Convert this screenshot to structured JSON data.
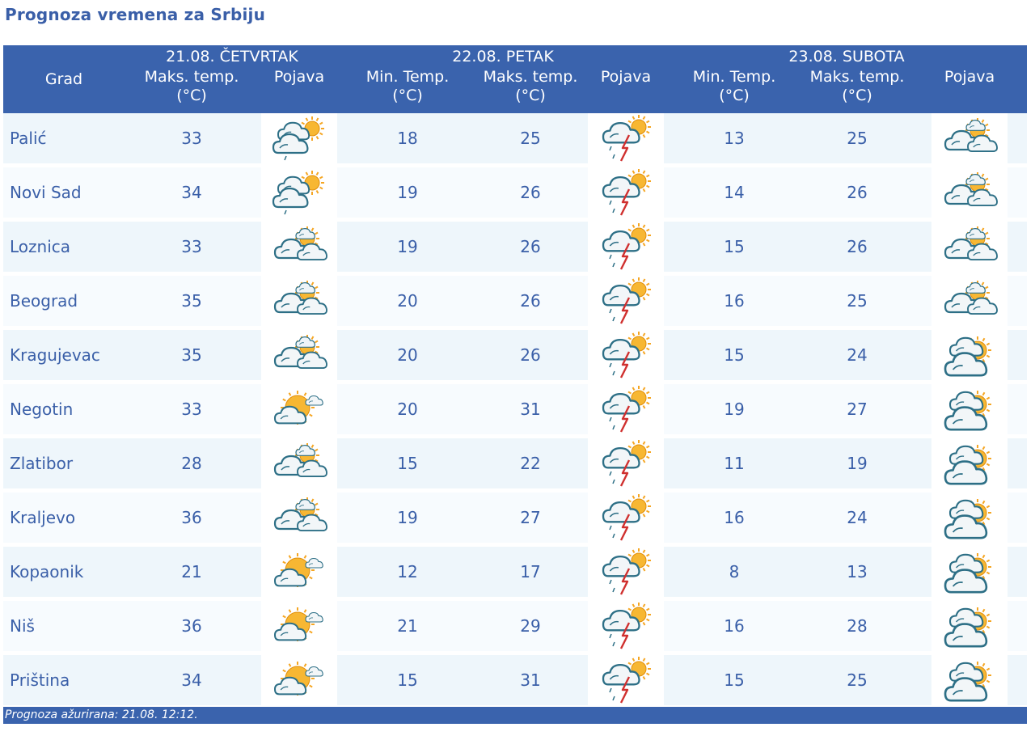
{
  "page_title": "Prognoza vremena za Srbiju",
  "header": {
    "grad": "Grad",
    "days": [
      {
        "label": "21.08. ČETVRTAK",
        "cols": [
          "Maks. temp.",
          "(°C)",
          "Pojava"
        ]
      },
      {
        "label": "22.08. PETAK",
        "min": [
          "Min. Temp.",
          "(°C)"
        ],
        "max": [
          "Maks. temp.",
          "(°C)"
        ],
        "pojava": "Pojava"
      },
      {
        "label": "23.08. SUBOTA",
        "min": [
          "Min. Temp.",
          "(°C)"
        ],
        "max": [
          "Maks. temp.",
          "(°C)"
        ],
        "pojava": "Pojava"
      }
    ]
  },
  "rows": [
    {
      "city": "Palić",
      "d1_max": "33",
      "d1_icon": "cloudy-sun-light-rain-icon",
      "d2_min": "18",
      "d2_max": "25",
      "d2_icon": "thunderstorm-icon",
      "d3_min": "13",
      "d3_max": "25",
      "d3_icon": "partly-cloudy-icon"
    },
    {
      "city": "Novi Sad",
      "d1_max": "34",
      "d1_icon": "cloudy-sun-light-rain-icon",
      "d2_min": "19",
      "d2_max": "26",
      "d2_icon": "thunderstorm-icon",
      "d3_min": "14",
      "d3_max": "26",
      "d3_icon": "partly-cloudy-icon"
    },
    {
      "city": "Loznica",
      "d1_max": "33",
      "d1_icon": "partly-cloudy-icon",
      "d2_min": "19",
      "d2_max": "26",
      "d2_icon": "thunderstorm-icon",
      "d3_min": "15",
      "d3_max": "26",
      "d3_icon": "partly-cloudy-icon"
    },
    {
      "city": "Beograd",
      "d1_max": "35",
      "d1_icon": "partly-cloudy-icon",
      "d2_min": "20",
      "d2_max": "26",
      "d2_icon": "thunderstorm-icon",
      "d3_min": "16",
      "d3_max": "25",
      "d3_icon": "partly-cloudy-icon"
    },
    {
      "city": "Kragujevac",
      "d1_max": "35",
      "d1_icon": "partly-cloudy-icon",
      "d2_min": "20",
      "d2_max": "26",
      "d2_icon": "thunderstorm-icon",
      "d3_min": "15",
      "d3_max": "24",
      "d3_icon": "cloudy-sun-icon"
    },
    {
      "city": "Negotin",
      "d1_max": "33",
      "d1_icon": "mostly-sunny-icon",
      "d2_min": "20",
      "d2_max": "31",
      "d2_icon": "thunderstorm-icon",
      "d3_min": "19",
      "d3_max": "27",
      "d3_icon": "cloudy-sun-icon"
    },
    {
      "city": "Zlatibor",
      "d1_max": "28",
      "d1_icon": "partly-cloudy-icon",
      "d2_min": "15",
      "d2_max": "22",
      "d2_icon": "thunderstorm-icon",
      "d3_min": "11",
      "d3_max": "19",
      "d3_icon": "cloudy-sun-icon"
    },
    {
      "city": "Kraljevo",
      "d1_max": "36",
      "d1_icon": "partly-cloudy-icon",
      "d2_min": "19",
      "d2_max": "27",
      "d2_icon": "thunderstorm-icon",
      "d3_min": "16",
      "d3_max": "24",
      "d3_icon": "cloudy-sun-icon"
    },
    {
      "city": "Kopaonik",
      "d1_max": "21",
      "d1_icon": "mostly-sunny-icon",
      "d2_min": "12",
      "d2_max": "17",
      "d2_icon": "thunderstorm-icon",
      "d3_min": "8",
      "d3_max": "13",
      "d3_icon": "cloudy-sun-icon"
    },
    {
      "city": "Niš",
      "d1_max": "36",
      "d1_icon": "mostly-sunny-icon",
      "d2_min": "21",
      "d2_max": "29",
      "d2_icon": "thunderstorm-icon",
      "d3_min": "16",
      "d3_max": "28",
      "d3_icon": "cloudy-sun-icon"
    },
    {
      "city": "Priština",
      "d1_max": "34",
      "d1_icon": "mostly-sunny-icon",
      "d2_min": "15",
      "d2_max": "31",
      "d2_icon": "thunderstorm-icon",
      "d3_min": "15",
      "d3_max": "25",
      "d3_icon": "cloudy-sun-icon"
    }
  ],
  "footer": "Prognoza ažurirana:  21.08.  12:12.",
  "colors": {
    "header_bg": "#3a63ad",
    "text": "#3a5fa8",
    "row_odd": "#eef6fb",
    "row_even": "#f7fbfe"
  }
}
